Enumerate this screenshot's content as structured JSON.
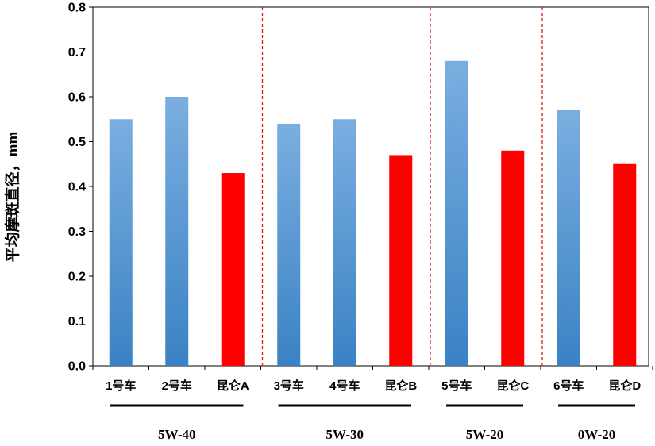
{
  "chart_data": {
    "type": "bar",
    "ylabel": "平均摩斑直径，mm",
    "ylim": [
      0,
      0.8
    ],
    "yticks": [
      "0.0",
      "0.1",
      "0.2",
      "0.3",
      "0.4",
      "0.5",
      "0.6",
      "0.7",
      "0.8"
    ],
    "grid": false,
    "legend": "none",
    "colors": {
      "vehicle": "#5b9bd5",
      "kunlun": "#ff0000"
    },
    "categories": [
      "1号车",
      "2号车",
      "昆仑A",
      "3号车",
      "4号车",
      "昆仑B",
      "5号车",
      "昆仑C",
      "6号车",
      "昆仑D"
    ],
    "values": [
      0.55,
      0.6,
      0.43,
      0.54,
      0.55,
      0.47,
      0.68,
      0.48,
      0.57,
      0.45
    ],
    "bar_kinds": [
      "vehicle",
      "vehicle",
      "kunlun",
      "vehicle",
      "vehicle",
      "kunlun",
      "vehicle",
      "kunlun",
      "vehicle",
      "kunlun"
    ],
    "groups": [
      {
        "label": "5W-40",
        "count": 3
      },
      {
        "label": "5W-30",
        "count": 3
      },
      {
        "label": "5W-20",
        "count": 2
      },
      {
        "label": "0W-20",
        "count": 2
      }
    ]
  }
}
